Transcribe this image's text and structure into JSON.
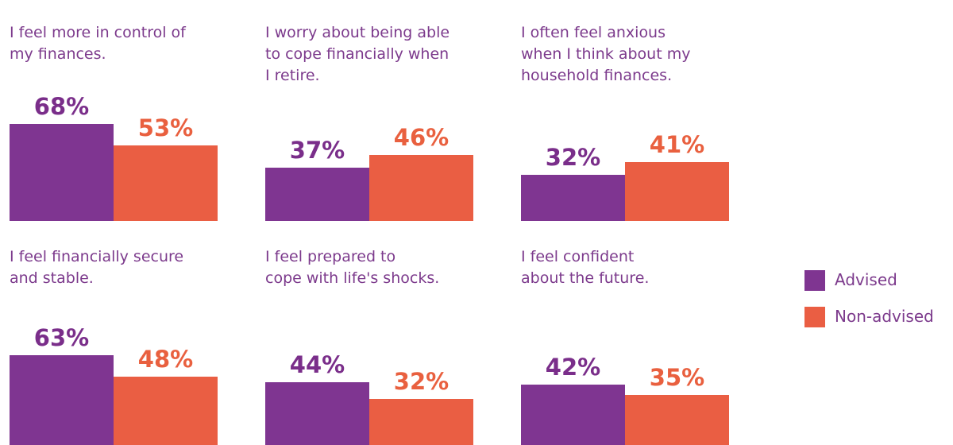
{
  "chart_data": {
    "type": "bar",
    "ylim": [
      0,
      100
    ],
    "legend_position": "right",
    "series_names": [
      "Advised",
      "Non-advised"
    ],
    "colors": {
      "advised": "#7f3591",
      "non_advised": "#ea5e43"
    },
    "panels": [
      {
        "title": "I feel more in control of\nmy finances.",
        "advised": 68,
        "non_advised": 53,
        "advised_label": "68%",
        "non_advised_label": "53%"
      },
      {
        "title": "I worry about being able\nto cope financially when\nI retire.",
        "advised": 37,
        "non_advised": 46,
        "advised_label": "37%",
        "non_advised_label": "46%"
      },
      {
        "title": "I often feel anxious\nwhen I think about my\nhousehold finances.",
        "advised": 32,
        "non_advised": 41,
        "advised_label": "32%",
        "non_advised_label": "41%"
      },
      {
        "title": "I feel financially secure\nand stable.",
        "advised": 63,
        "non_advised": 48,
        "advised_label": "63%",
        "non_advised_label": "48%"
      },
      {
        "title": "I feel prepared to\ncope with life's shocks.",
        "advised": 44,
        "non_advised": 32,
        "advised_label": "44%",
        "non_advised_label": "32%"
      },
      {
        "title": "I feel confident\nabout the future.",
        "advised": 42,
        "non_advised": 35,
        "advised_label": "42%",
        "non_advised_label": "35%"
      }
    ]
  },
  "legend": {
    "advised": "Advised",
    "non_advised": "Non-advised"
  }
}
